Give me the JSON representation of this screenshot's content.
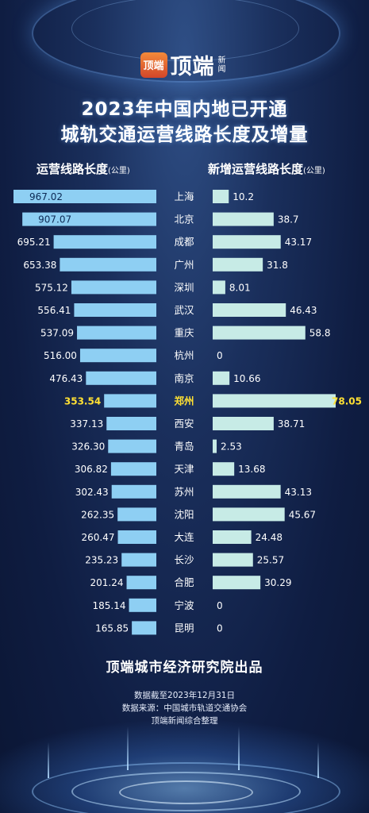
{
  "logo": {
    "badge": "顶端",
    "name": "顶端",
    "sub": "新闻"
  },
  "title": {
    "line1": "2023年中国内地已开通",
    "line2": "城轨交通运营线路长度及增量"
  },
  "headers": {
    "left_label": "运营线路长度",
    "left_unit": "(公里)",
    "right_label": "新增运营线路长度",
    "right_unit": "(公里)"
  },
  "colors": {
    "left_bar": "#8ecff3",
    "right_bar": "#c7ebe6",
    "highlight_text": "#ffe033",
    "city_text": "#ffffff"
  },
  "chart_data": {
    "type": "bar",
    "orientation": "horizontal-butterfly",
    "categories": [
      "上海",
      "北京",
      "成都",
      "广州",
      "深圳",
      "武汉",
      "重庆",
      "杭州",
      "南京",
      "郑州",
      "西安",
      "青岛",
      "天津",
      "苏州",
      "沈阳",
      "大连",
      "长沙",
      "合肥",
      "宁波",
      "昆明"
    ],
    "series": [
      {
        "name": "运营线路长度",
        "values": [
          967.02,
          907.07,
          695.21,
          653.38,
          575.12,
          556.41,
          537.09,
          516.0,
          476.43,
          353.54,
          337.13,
          326.3,
          306.82,
          302.43,
          262.35,
          260.47,
          235.23,
          201.24,
          185.14,
          165.85
        ]
      },
      {
        "name": "新增运营线路长度",
        "values": [
          10.2,
          38.7,
          43.17,
          31.8,
          8.01,
          46.43,
          58.8,
          0,
          10.66,
          78.05,
          38.71,
          2.53,
          13.68,
          43.13,
          45.67,
          24.48,
          25.57,
          30.29,
          0,
          0
        ]
      }
    ],
    "left_labels": [
      "967.02",
      "907.07",
      "695.21",
      "653.38",
      "575.12",
      "556.41",
      "537.09",
      "516.00",
      "476.43",
      "353.54",
      "337.13",
      "326.30",
      "306.82",
      "302.43",
      "262.35",
      "260.47",
      "235.23",
      "201.24",
      "185.14",
      "165.85"
    ],
    "right_labels": [
      "10.2",
      "38.7",
      "43.17",
      "31.8",
      "8.01",
      "46.43",
      "58.8",
      "0",
      "10.66",
      "78.05",
      "38.71",
      "2.53",
      "13.68",
      "43.13",
      "45.67",
      "24.48",
      "25.57",
      "30.29",
      "0",
      "0"
    ],
    "highlight_category": "郑州",
    "xlim_left": [
      0,
      967.02
    ],
    "xlim_right": [
      0,
      78.05
    ]
  },
  "footer": {
    "org": "顶端城市经济研究院出品",
    "date_note": "数据截至2023年12月31日",
    "source": "数据来源：中国城市轨道交通协会",
    "compiler": "顶端新闻综合整理"
  }
}
